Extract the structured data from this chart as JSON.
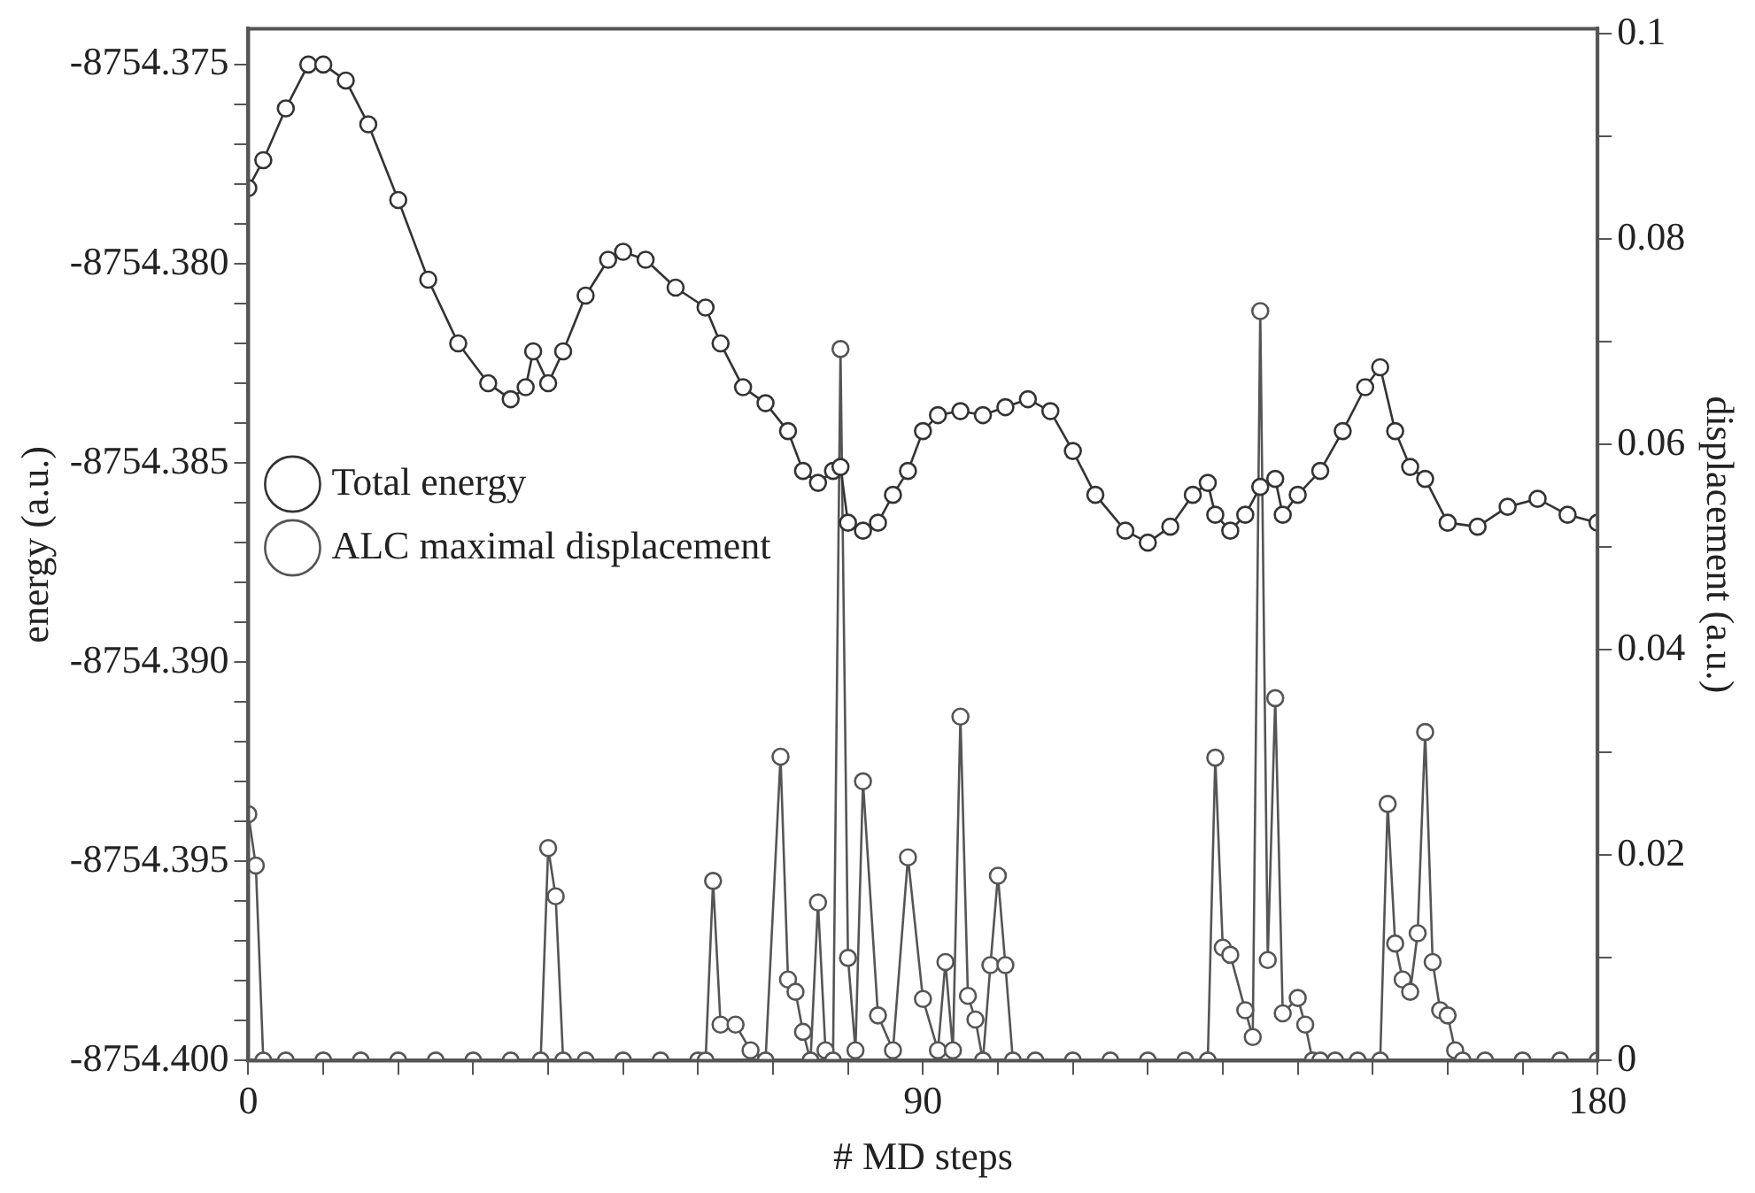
{
  "chart_data": {
    "type": "line",
    "xlabel": "# MD steps",
    "ylabel": "energy (a.u.)",
    "y2label": "displacement (a.u.)",
    "xlim": [
      0,
      180
    ],
    "xticks": [
      0,
      {
        "value": 10,
        "label": null
      },
      {
        "value": 20,
        "label": null
      },
      {
        "value": 30,
        "label": null
      },
      {
        "value": 40,
        "label": null
      },
      {
        "value": 50,
        "label": null
      },
      {
        "value": 60,
        "label": null
      },
      {
        "value": 70,
        "label": null
      },
      {
        "value": 80,
        "label": null
      },
      90,
      {
        "value": 100,
        "label": null
      },
      {
        "value": 110,
        "label": null
      },
      {
        "value": 120,
        "label": null
      },
      {
        "value": 130,
        "label": null
      },
      {
        "value": 140,
        "label": null
      },
      {
        "value": 150,
        "label": null
      },
      {
        "value": 160,
        "label": null
      },
      {
        "value": 170,
        "label": null
      },
      180
    ],
    "ylim": [
      -8754.4,
      -8754.3741
    ],
    "yticks": [
      {
        "value": -8754.4,
        "label": "-8754.400"
      },
      {
        "value": -8754.399,
        "label": null
      },
      {
        "value": -8754.398,
        "label": null
      },
      {
        "value": -8754.397,
        "label": null
      },
      {
        "value": -8754.396,
        "label": null
      },
      -8754.395,
      {
        "value": -8754.394,
        "label": null
      },
      {
        "value": -8754.393,
        "label": null
      },
      {
        "value": -8754.392,
        "label": null
      },
      {
        "value": -8754.391,
        "label": null
      },
      {
        "value": -8754.39,
        "label": "-8754.390"
      },
      {
        "value": -8754.389,
        "label": null
      },
      {
        "value": -8754.388,
        "label": null
      },
      {
        "value": -8754.387,
        "label": null
      },
      {
        "value": -8754.386,
        "label": null
      },
      -8754.385,
      {
        "value": -8754.384,
        "label": null
      },
      {
        "value": -8754.383,
        "label": null
      },
      {
        "value": -8754.382,
        "label": null
      },
      {
        "value": -8754.381,
        "label": null
      },
      {
        "value": -8754.38,
        "label": "-8754.380"
      },
      {
        "value": -8754.379,
        "label": null
      },
      {
        "value": -8754.378,
        "label": null
      },
      {
        "value": -8754.377,
        "label": null
      },
      {
        "value": -8754.376,
        "label": null
      },
      -8754.375
    ],
    "y2lim": [
      0,
      0.1005
    ],
    "y2ticks": [
      0,
      {
        "value": 0.01,
        "label": null
      },
      0.02,
      {
        "value": 0.03,
        "label": null
      },
      0.04,
      {
        "value": 0.05,
        "label": null
      },
      0.06,
      {
        "value": 0.07,
        "label": null
      },
      0.08,
      {
        "value": 0.09,
        "label": null
      },
      0.1
    ],
    "grid": false,
    "legend": "top",
    "marker": "circle",
    "line_style": "solid",
    "series": [
      {
        "name": "Total energy",
        "color": "#333333",
        "x": [
          0,
          2,
          5,
          8,
          10,
          13,
          16,
          20,
          24,
          28,
          32,
          35,
          37,
          38,
          40,
          42,
          45,
          48,
          50,
          53,
          57,
          61,
          63,
          66,
          69,
          72,
          74,
          76,
          78,
          79,
          80,
          82,
          84,
          86,
          88,
          90,
          92,
          95,
          98,
          101,
          104,
          107,
          110,
          113,
          117,
          120,
          123,
          126,
          128,
          129,
          131,
          133,
          135,
          137,
          138,
          140,
          143,
          146,
          149,
          151,
          153,
          155,
          157,
          160,
          164,
          168,
          172,
          176,
          180
        ],
        "values": [
          -8754.3781,
          -8754.3774,
          -8754.3761,
          -8754.375,
          -8754.375,
          -8754.3754,
          -8754.3765,
          -8754.3784,
          -8754.3804,
          -8754.382,
          -8754.383,
          -8754.3834,
          -8754.3831,
          -8754.3822,
          -8754.383,
          -8754.3822,
          -8754.3808,
          -8754.3799,
          -8754.3797,
          -8754.3799,
          -8754.3806,
          -8754.3811,
          -8754.382,
          -8754.3831,
          -8754.3835,
          -8754.3842,
          -8754.3852,
          -8754.3855,
          -8754.3852,
          -8754.3851,
          -8754.3865,
          -8754.3867,
          -8754.3865,
          -8754.3858,
          -8754.3852,
          -8754.3842,
          -8754.3838,
          -8754.3837,
          -8754.3838,
          -8754.3836,
          -8754.3834,
          -8754.3837,
          -8754.3847,
          -8754.3858,
          -8754.3867,
          -8754.387,
          -8754.3866,
          -8754.3858,
          -8754.3855,
          -8754.3863,
          -8754.3867,
          -8754.3863,
          -8754.3856,
          -8754.3854,
          -8754.3863,
          -8754.3858,
          -8754.3852,
          -8754.3842,
          -8754.3831,
          -8754.3826,
          -8754.3842,
          -8754.3851,
          -8754.3854,
          -8754.3865,
          -8754.3866,
          -8754.3861,
          -8754.3859,
          -8754.3863,
          -8754.3865
        ]
      },
      {
        "name": "ALC maximal displacement",
        "color": "#555555",
        "axis": "y2",
        "x": [
          0,
          1,
          2,
          5,
          10,
          15,
          20,
          25,
          30,
          35,
          39,
          40,
          41,
          42,
          45,
          50,
          55,
          60,
          61,
          62,
          63,
          65,
          67,
          69,
          71,
          72,
          73,
          74,
          75,
          76,
          77,
          78,
          79,
          80,
          81,
          82,
          84,
          86,
          88,
          90,
          92,
          93,
          94,
          95,
          96,
          97,
          98,
          99,
          100,
          101,
          102,
          105,
          110,
          115,
          120,
          125,
          128,
          129,
          130,
          131,
          133,
          134,
          135,
          136,
          137,
          138,
          140,
          141,
          142,
          143,
          145,
          148,
          151,
          152,
          153,
          154,
          155,
          156,
          157,
          158,
          159,
          160,
          161,
          162,
          165,
          170,
          175,
          180
        ],
        "values": [
          0.024,
          0.019,
          0,
          0,
          0,
          0,
          0,
          0,
          0,
          0,
          0,
          0.0207,
          0.016,
          0,
          0,
          0,
          0,
          0,
          0,
          0.0175,
          0.0035,
          0.0035,
          0.001,
          0,
          0.0296,
          0.0079,
          0.0067,
          0.0028,
          0,
          0.0154,
          0.001,
          0,
          0.0693,
          0.01,
          0.001,
          0.0272,
          0.0044,
          0.001,
          0.0198,
          0.006,
          0.001,
          0.0096,
          0.001,
          0.0335,
          0.0063,
          0.004,
          0,
          0.0093,
          0.018,
          0.0093,
          0,
          0,
          0,
          0,
          0,
          0,
          0,
          0.0295,
          0.011,
          0.0103,
          0.0049,
          0.0023,
          0.073,
          0.0098,
          0.0353,
          0.0046,
          0.0061,
          0.0035,
          0,
          0,
          0,
          0,
          0,
          0.025,
          0.0114,
          0.0079,
          0.0067,
          0.0124,
          0.032,
          0.0096,
          0.0049,
          0.0044,
          0.001,
          0,
          0,
          0,
          0,
          0
        ]
      }
    ]
  }
}
